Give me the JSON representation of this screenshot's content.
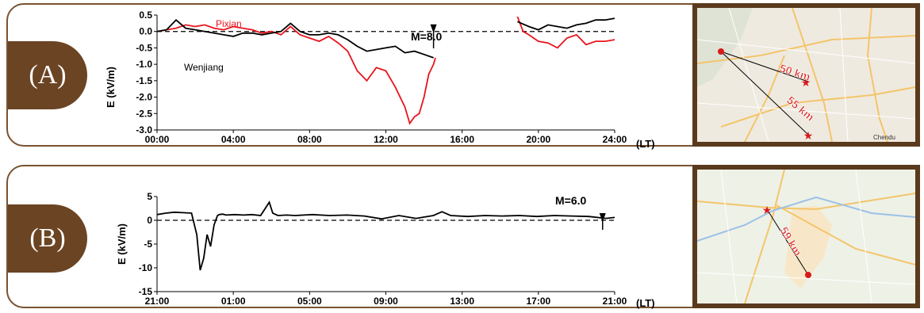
{
  "panels": [
    {
      "label": "(A)",
      "ylabel": "E (kV/m)",
      "lt_label": "(LT)",
      "event_label": "M=8.0",
      "map_labels": [
        "50 km",
        "55 km",
        "Chendu"
      ],
      "chart_data": {
        "type": "line",
        "x_unit": "hours",
        "ylim": [
          -3.0,
          0.5
        ],
        "xlim": [
          0,
          24
        ],
        "xticks": [
          "00:00",
          "04:00",
          "08:00",
          "12:00",
          "16:00",
          "20:00",
          "24:00"
        ],
        "yticks": [
          "0.5",
          "0.0",
          "-0.5",
          "-1.0",
          "-1.5",
          "-2.0",
          "-2.5",
          "-3.0"
        ],
        "zero_line": "dashed",
        "event_x": 14.5,
        "series": [
          {
            "name": "Pixian",
            "color": "#e8141c",
            "segments": [
              {
                "x": [
                  0,
                  0.5,
                  1,
                  1.5,
                  2,
                  2.5,
                  3,
                  3.5,
                  4,
                  4.5,
                  5,
                  5.5,
                  6,
                  6.5,
                  7,
                  7.5,
                  8,
                  8.5,
                  9,
                  9.5,
                  10,
                  10.5,
                  11,
                  11.5,
                  12,
                  12.5,
                  13,
                  13.25,
                  13.5,
                  13.75,
                  14,
                  14.25,
                  14.5,
                  14.6
                ],
                "y": [
                  0.0,
                  0.05,
                  0.1,
                  0.2,
                  0.15,
                  0.2,
                  0.1,
                  0.05,
                  0.15,
                  0.1,
                  0.05,
                  -0.05,
                  0.0,
                  -0.1,
                  0.15,
                  -0.1,
                  -0.2,
                  -0.3,
                  -0.15,
                  -0.35,
                  -0.6,
                  -1.2,
                  -1.5,
                  -1.1,
                  -1.2,
                  -1.7,
                  -2.3,
                  -2.8,
                  -2.6,
                  -2.5,
                  -2.0,
                  -1.3,
                  -1.0,
                  -0.8
                ]
              },
              {
                "x": [
                  18.9,
                  19.2,
                  19.5,
                  20,
                  20.5,
                  21,
                  21.5,
                  22,
                  22.5,
                  23,
                  23.5,
                  24
                ],
                "y": [
                  0.45,
                  0.0,
                  -0.1,
                  -0.3,
                  -0.35,
                  -0.5,
                  -0.2,
                  -0.1,
                  -0.4,
                  -0.3,
                  -0.3,
                  -0.25
                ]
              }
            ]
          },
          {
            "name": "Wenjiang",
            "color": "#000000",
            "segments": [
              {
                "x": [
                  0,
                  0.5,
                  1,
                  1.5,
                  2,
                  2.5,
                  3,
                  3.5,
                  4,
                  4.5,
                  5,
                  5.5,
                  6,
                  6.5,
                  7,
                  7.5,
                  8,
                  8.5,
                  9,
                  9.5,
                  10,
                  10.5,
                  11,
                  11.5,
                  12,
                  12.5,
                  13,
                  13.5,
                  14,
                  14.5
                ],
                "y": [
                  0.0,
                  0.05,
                  0.35,
                  0.1,
                  0.05,
                  0.0,
                  -0.05,
                  -0.1,
                  -0.15,
                  -0.05,
                  -0.05,
                  -0.1,
                  -0.05,
                  0.0,
                  0.25,
                  0.0,
                  -0.1,
                  -0.1,
                  -0.05,
                  -0.1,
                  -0.25,
                  -0.45,
                  -0.6,
                  -0.55,
                  -0.5,
                  -0.45,
                  -0.65,
                  -0.6,
                  -0.7,
                  -0.8
                ]
              },
              {
                "x": [
                  18.9,
                  19.5,
                  20,
                  20.5,
                  21,
                  21.5,
                  22,
                  22.5,
                  23,
                  23.5,
                  24
                ],
                "y": [
                  0.3,
                  0.15,
                  0.05,
                  0.2,
                  0.15,
                  0.1,
                  0.2,
                  0.25,
                  0.35,
                  0.35,
                  0.4
                ]
              }
            ]
          }
        ]
      }
    },
    {
      "label": "(B)",
      "ylabel": "E (kV/m)",
      "lt_label": "(LT)",
      "event_label": "M=6.0",
      "map_labels": [
        "59 km"
      ],
      "chart_data": {
        "type": "line",
        "x_unit": "hours since 21:00",
        "ylim": [
          -15,
          5
        ],
        "xlim": [
          0,
          26.5
        ],
        "xticks": [
          "21:00",
          "01:00",
          "05:00",
          "09:00",
          "13:00",
          "17:00",
          "21:00"
        ],
        "yticks": [
          "5",
          "0",
          "-5",
          "-10",
          "-15"
        ],
        "zero_line": "dashed",
        "event_x": 25.8,
        "series": [
          {
            "name": "",
            "color": "#000000",
            "segments": [
              {
                "x": [
                  0,
                  0.5,
                  1,
                  1.5,
                  2,
                  2.3,
                  2.5,
                  2.7,
                  2.9,
                  3.1,
                  3.3,
                  3.5,
                  3.6,
                  3.8,
                  4,
                  4.5,
                  5,
                  5.5,
                  6,
                  6.5,
                  6.7,
                  7,
                  7.5,
                  8,
                  9,
                  10,
                  11,
                  12,
                  13,
                  14,
                  15,
                  16,
                  16.5,
                  17,
                  18,
                  19,
                  20,
                  21,
                  22,
                  23,
                  24,
                  25,
                  26,
                  26.5
                ],
                "y": [
                  1.2,
                  1.5,
                  1.7,
                  1.6,
                  1.5,
                  -3,
                  -10.5,
                  -8,
                  -3,
                  -5.5,
                  -1,
                  1.0,
                  1.2,
                  1.3,
                  1.1,
                  1.2,
                  1.1,
                  1.2,
                  1.0,
                  3.8,
                  1.5,
                  1.0,
                  1.1,
                  1.0,
                  1.2,
                  1.0,
                  1.1,
                  0.9,
                  0.3,
                  1.0,
                  0.4,
                  1.0,
                  1.8,
                  1.0,
                  0.8,
                  1.0,
                  0.9,
                  1.0,
                  0.8,
                  1.0,
                  0.9,
                  0.8,
                  0.4,
                  0.6
                ]
              }
            ]
          }
        ]
      }
    }
  ]
}
